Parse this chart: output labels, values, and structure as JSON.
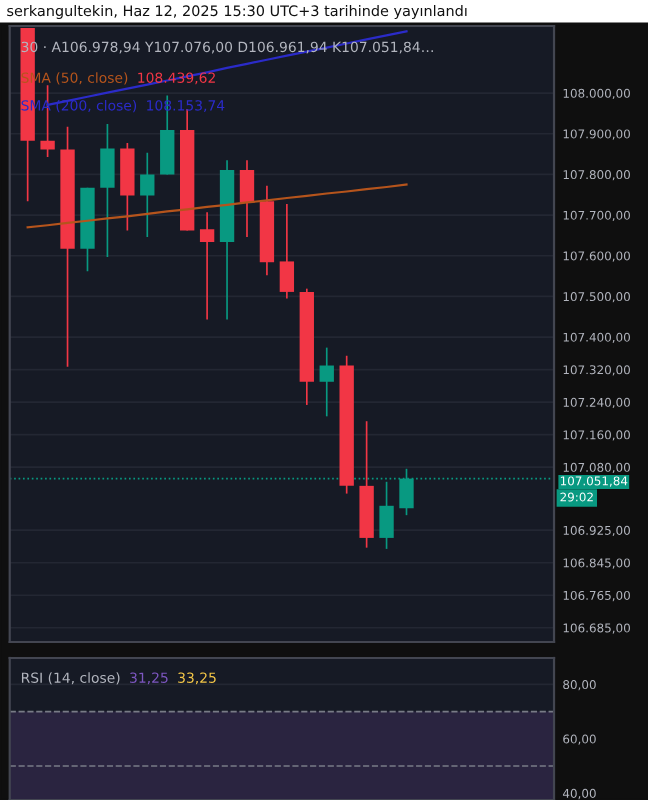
{
  "chart_data": [
    {
      "type": "candlestick",
      "title": "serkangultekin, Haz 12, 2025 15:30 UTC+3 tarihinde yayınlandı",
      "subtitle": "30 · A106.978,94 Y107.076,00 D106.961,94 K107.051,84…",
      "categories": [
        null,
        null,
        null,
        null,
        null,
        null,
        null,
        null,
        null,
        null,
        null,
        null,
        null,
        null,
        null,
        null,
        null,
        null,
        null,
        null
      ],
      "ohlc": [
        [
          108160,
          108160,
          107734,
          107883
        ],
        [
          107883,
          108019,
          107843,
          107861
        ],
        [
          107861,
          107917,
          107327,
          107617
        ],
        [
          107617,
          107767,
          107562,
          107767
        ],
        [
          107767,
          107924,
          107597,
          107864
        ],
        [
          107864,
          107877,
          107662,
          107748
        ],
        [
          107748,
          107853,
          107646,
          107800
        ],
        [
          107800,
          107994,
          107800,
          107909
        ],
        [
          107909,
          107961,
          107662,
          107662
        ],
        [
          107665,
          107707,
          107443,
          107634
        ],
        [
          107634,
          107835,
          107443,
          107811
        ],
        [
          107811,
          107835,
          107646,
          107732
        ],
        [
          107734,
          107772,
          107552,
          107584
        ],
        [
          107586,
          107727,
          107495,
          107511
        ],
        [
          107511,
          107519,
          107233,
          107290
        ],
        [
          107290,
          107374,
          107205,
          107330
        ],
        [
          107330,
          107354,
          107015,
          107034
        ],
        [
          107034,
          107193,
          106882,
          106906
        ],
        [
          106906,
          107044,
          106879,
          106985
        ],
        [
          106978.94,
          107076,
          106961.94,
          107051.84
        ]
      ],
      "colors": [
        "#f23645",
        "#f23645",
        "#f23645",
        "#089981",
        "#089981",
        "#f23645",
        "#089981",
        "#089981",
        "#f23645",
        "#f23645",
        "#089981",
        "#f23645",
        "#f23645",
        "#f23645",
        "#f23645",
        "#089981",
        "#f23645",
        "#f23645",
        "#089981",
        "#089981"
      ],
      "series": [
        {
          "name": "SMA (50, close)",
          "type": "line",
          "color": "#b5541c",
          "values": [
            107670,
            107675,
            107681,
            107686,
            107692,
            107697,
            107703,
            107709,
            107714,
            107720,
            107725,
            107731,
            107736,
            107742,
            107747,
            107753,
            107758,
            107764,
            107769,
            107775
          ]
        },
        {
          "name": "SMA (200, close)",
          "type": "line",
          "color": "#2b2bc9",
          "values": [
            null,
            107971,
            107981,
            107991,
            108001,
            108011,
            108021,
            108031,
            108041,
            108051,
            108062,
            108072,
            108082,
            108092,
            108102,
            108112,
            108122,
            108132,
            108142,
            108152
          ]
        }
      ],
      "annotations": [
        "108.439,62",
        "108.153,74",
        "29:02"
      ],
      "ref_lines": [
        {
          "axis": "y",
          "value": 107051.84,
          "label": "107.051,84",
          "color": "#089981",
          "line_style": "dotted"
        }
      ],
      "ylim": [
        106650,
        108165
      ],
      "yticks": [
        {
          "value": 108000,
          "label": "108.000,00"
        },
        {
          "value": 107900,
          "label": "107.900,00"
        },
        {
          "value": 107800,
          "label": "107.800,00"
        },
        {
          "value": 107700,
          "label": "107.700,00"
        },
        {
          "value": 107600,
          "label": "107.600,00"
        },
        {
          "value": 107500,
          "label": "107.500,00"
        },
        {
          "value": 107400,
          "label": "107.400,00"
        },
        {
          "value": 107320,
          "label": "107.320,00"
        },
        {
          "value": 107240,
          "label": "107.240,00"
        },
        {
          "value": 107160,
          "label": "107.160,00"
        },
        {
          "value": 107080,
          "label": "107.080,00"
        },
        {
          "value": 106925,
          "label": "106.925,00"
        },
        {
          "value": 106845,
          "label": "106.845,00"
        },
        {
          "value": 106765,
          "label": "106.765,00"
        },
        {
          "value": 106685,
          "label": "106.685,00"
        }
      ],
      "grid": "y",
      "legend": "top"
    },
    {
      "type": "line",
      "title": "RSI (14, close)",
      "categories": [
        null,
        null,
        null,
        null,
        null,
        null,
        null,
        null,
        null,
        null,
        null,
        null,
        null,
        null,
        null,
        null,
        null,
        null,
        null,
        null
      ],
      "annotations": [
        "31,25",
        "33,25"
      ],
      "bands": [
        {
          "axis": "y",
          "from": 30,
          "to": 70,
          "color": "#2a2440"
        }
      ],
      "ref_lines": [
        {
          "axis": "y",
          "value": 70,
          "color": "#787b86",
          "line_style": "dashed"
        },
        {
          "axis": "y",
          "value": 50,
          "color": "#787b86",
          "line_style": "dashed"
        }
      ],
      "ylim": [
        37.5,
        89.7
      ],
      "yticks": [
        {
          "value": 80,
          "label": "80,00"
        },
        {
          "value": 60,
          "label": "60,00"
        },
        {
          "value": 40,
          "label": "40,00"
        }
      ],
      "grid": "y"
    }
  ]
}
